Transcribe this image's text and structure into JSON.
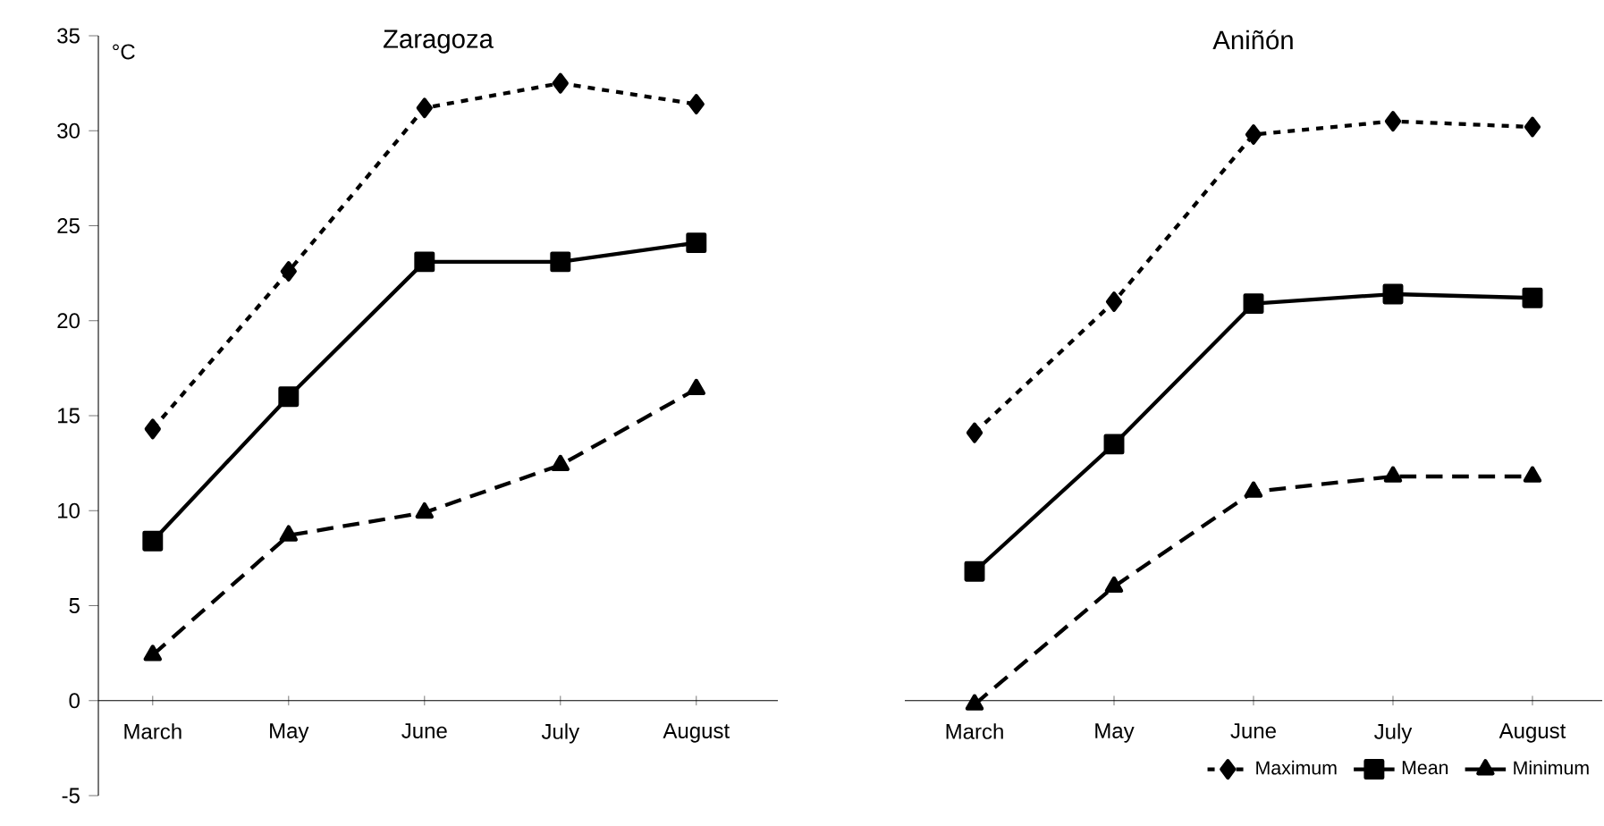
{
  "chart_data": [
    {
      "type": "line",
      "title": "Zaragoza",
      "ylabel": "°C",
      "categories": [
        "March",
        "May",
        "June",
        "July",
        "August"
      ],
      "ylim": [
        -5,
        35
      ],
      "yticks": [
        -5,
        0,
        5,
        10,
        15,
        20,
        25,
        30,
        35
      ],
      "grid": false,
      "legend": false,
      "series": [
        {
          "color": "#000000",
          "marker": "diamond",
          "line_style": "dotted",
          "values": [
            14.3,
            22.6,
            31.2,
            32.5,
            31.4
          ]
        },
        {
          "color": "#000000",
          "marker": "square",
          "line_style": "solid",
          "values": [
            8.4,
            16.0,
            23.1,
            23.1,
            24.1
          ]
        },
        {
          "color": "#000000",
          "marker": "triangle",
          "line_style": "dashed",
          "values": [
            2.4,
            8.7,
            9.9,
            12.4,
            16.4
          ]
        }
      ]
    },
    {
      "type": "line",
      "title": "Aniñón",
      "categories": [
        "March",
        "May",
        "June",
        "July",
        "August"
      ],
      "ylim": [
        -5,
        35
      ],
      "yticks": [
        -5,
        0,
        5,
        10,
        15,
        20,
        25,
        30,
        35
      ],
      "tick_labels": "x",
      "grid": false,
      "legend": "bottom right",
      "series": [
        {
          "name": "Maximum",
          "color": "#000000",
          "marker": "diamond",
          "line_style": "dotted",
          "values": [
            14.1,
            21.0,
            29.8,
            30.5,
            30.2
          ]
        },
        {
          "name": "Mean",
          "color": "#000000",
          "marker": "square",
          "line_style": "solid",
          "values": [
            6.8,
            13.5,
            20.9,
            21.4,
            21.2
          ]
        },
        {
          "name": "Minimum",
          "color": "#000000",
          "marker": "triangle",
          "line_style": "dashed",
          "values": [
            -0.2,
            6.0,
            11.0,
            11.8,
            11.8
          ]
        }
      ]
    }
  ]
}
